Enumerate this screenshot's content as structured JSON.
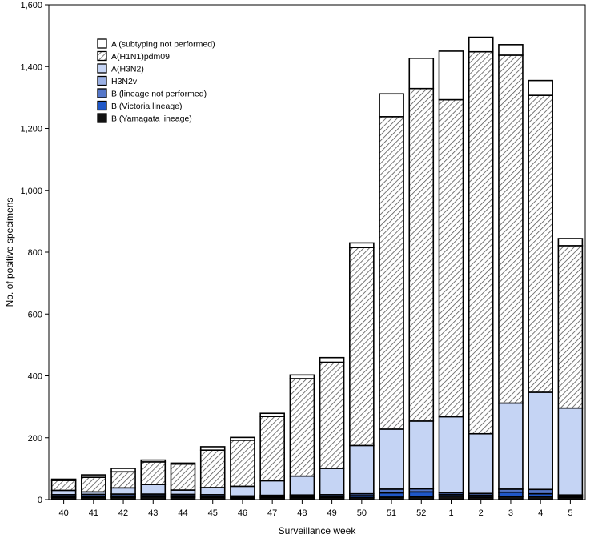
{
  "chart_data": {
    "type": "bar",
    "stacked": true,
    "title": "",
    "xlabel": "Surveillance week",
    "ylabel": "No. of positive specimens",
    "ylim": [
      0,
      1600
    ],
    "yticks": [
      0,
      200,
      400,
      600,
      800,
      1000,
      1200,
      1400,
      1600
    ],
    "ytick_labels": [
      "0",
      "200",
      "400",
      "600",
      "800",
      "1,000",
      "1,200",
      "1,400",
      "1,600"
    ],
    "grid": false,
    "legend_position": "top-left",
    "categories": [
      "40",
      "41",
      "42",
      "43",
      "44",
      "45",
      "46",
      "47",
      "48",
      "49",
      "50",
      "51",
      "52",
      "1",
      "2",
      "3",
      "4",
      "5"
    ],
    "series": [
      {
        "name": "B (Yamagata lineage)",
        "color": "#111111",
        "pattern": "solid",
        "values": [
          7,
          7,
          8,
          9,
          8,
          7,
          5,
          6,
          6,
          7,
          7,
          8,
          9,
          12,
          8,
          10,
          10,
          7
        ]
      },
      {
        "name": "B (Victoria lineage)",
        "color": "#1f57c7",
        "pattern": "solid",
        "values": [
          4,
          4,
          4,
          4,
          4,
          4,
          3,
          3,
          4,
          4,
          6,
          14,
          16,
          5,
          6,
          14,
          9,
          4
        ]
      },
      {
        "name": "B (lineage not performed)",
        "color": "#5577c9",
        "pattern": "solid",
        "values": [
          5,
          6,
          6,
          5,
          5,
          5,
          4,
          5,
          5,
          5,
          6,
          12,
          10,
          6,
          6,
          10,
          14,
          4
        ]
      },
      {
        "name": "H3N2v",
        "color": "#9ab0e4",
        "pattern": "solid",
        "values": [
          0,
          0,
          0,
          0,
          0,
          0,
          0,
          0,
          0,
          0,
          0,
          0,
          0,
          0,
          0,
          0,
          0,
          0
        ]
      },
      {
        "name": "A(H3N2)",
        "color": "#c5d4f4",
        "pattern": "solid",
        "values": [
          14,
          8,
          20,
          31,
          14,
          23,
          31,
          47,
          61,
          85,
          156,
          194,
          219,
          245,
          193,
          278,
          314,
          281
        ]
      },
      {
        "name": "A(H1N1)pdm09",
        "color": "#ffffff",
        "pattern": "hatch",
        "values": [
          32,
          47,
          52,
          73,
          84,
          121,
          149,
          208,
          315,
          343,
          640,
          1010,
          1075,
          1025,
          1235,
          1125,
          960,
          525
        ]
      },
      {
        "name": "A (subtyping not performed)",
        "color": "#ffffff",
        "pattern": "solid",
        "values": [
          4,
          8,
          11,
          6,
          3,
          11,
          9,
          10,
          12,
          15,
          15,
          74,
          98,
          157,
          47,
          34,
          48,
          23
        ]
      }
    ]
  }
}
